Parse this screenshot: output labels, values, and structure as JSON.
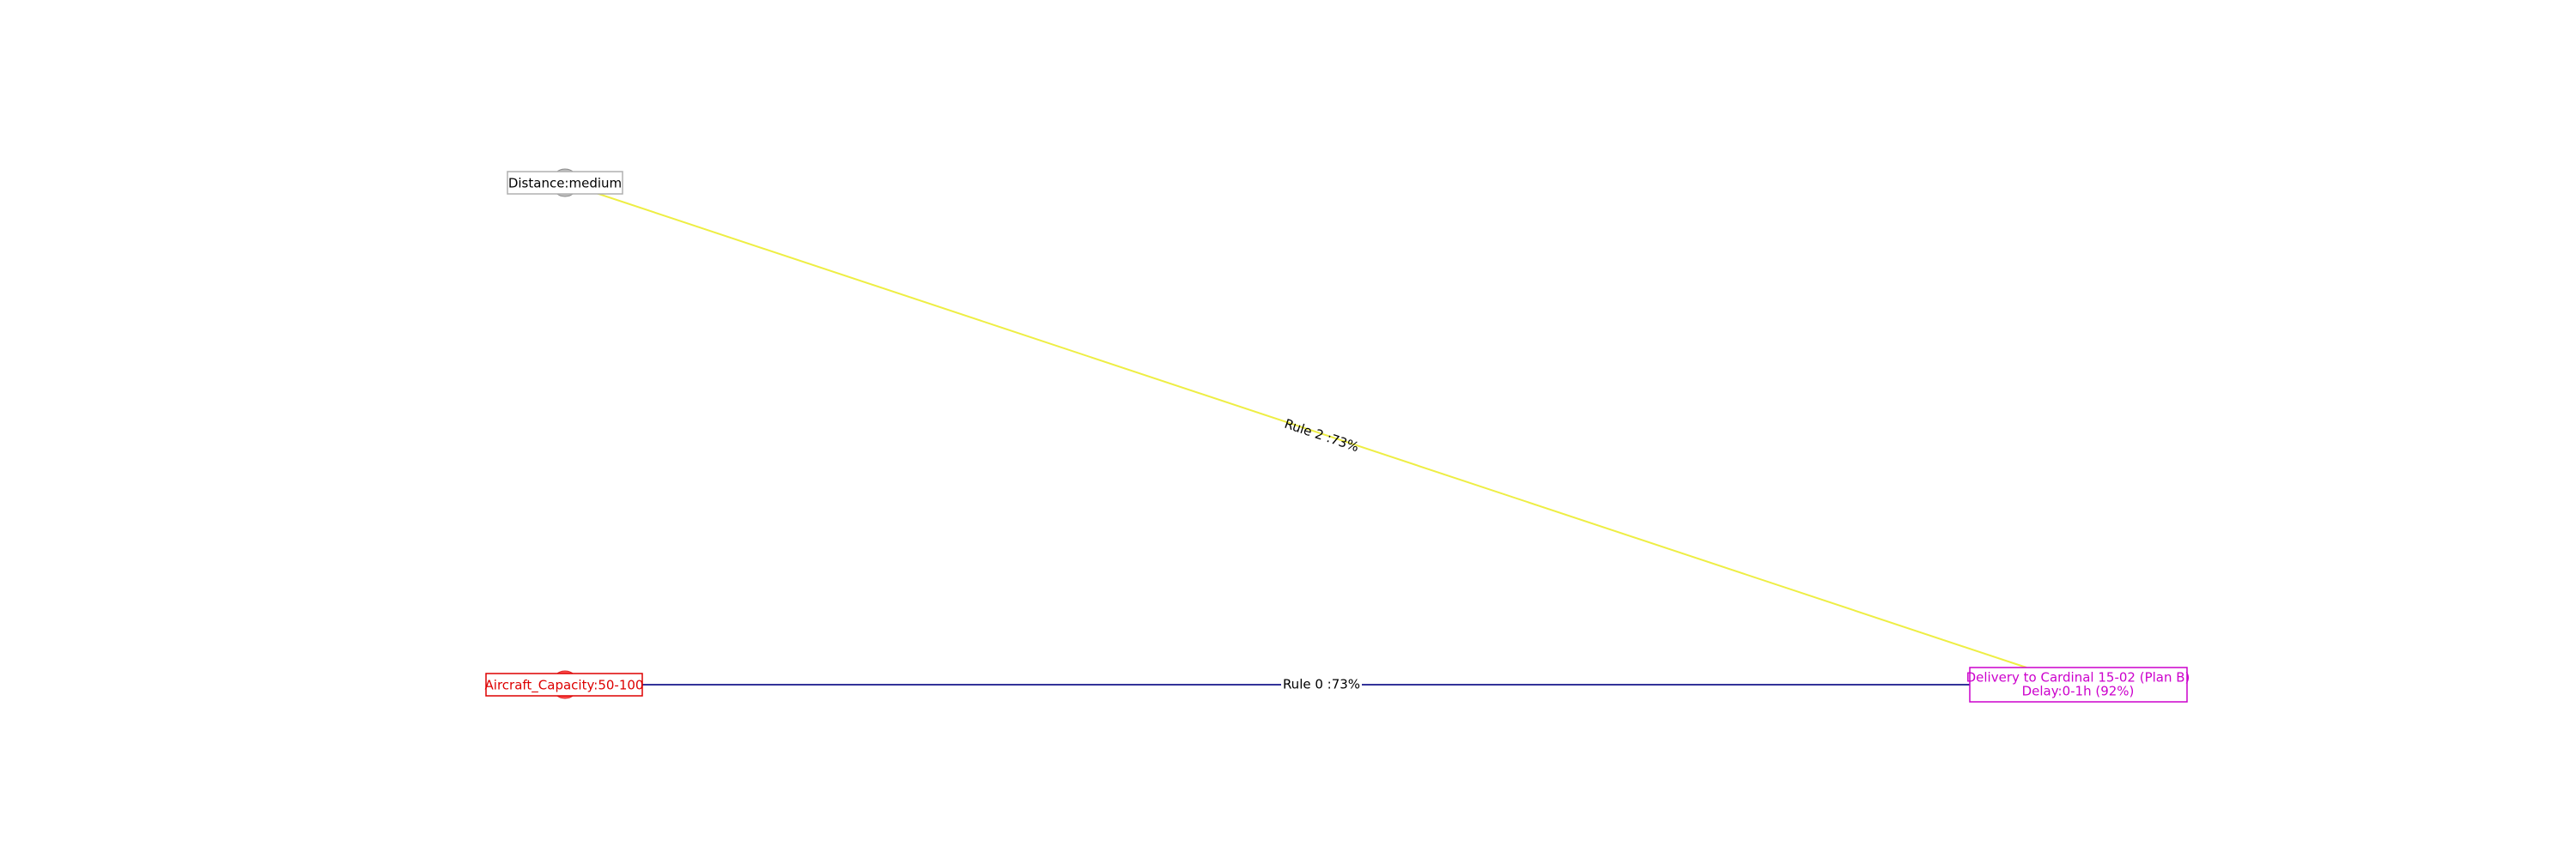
{
  "nodes": [
    {
      "id": "distance",
      "label": "Distance:medium",
      "color": "#aaaaaa",
      "text_color": "#000000",
      "box_color": "#b0b0b0"
    },
    {
      "id": "capacity",
      "label": "Aircraft_Capacity:50-100",
      "color": "#ff3333",
      "text_color": "#dd0000",
      "box_color": "#dd0000"
    },
    {
      "id": "target",
      "label_lines": [
        "Delivery to Cardinal 15-02 (Plan B)",
        "Delay:0-1h (92%)"
      ],
      "text_color": "#cc00cc",
      "box_color": "#cc00cc"
    }
  ],
  "edges": [
    {
      "id": "rule2",
      "from": "distance",
      "to": "target",
      "label": "Rule 2 :73%",
      "color": "#eeee44"
    },
    {
      "id": "rule0",
      "from": "capacity",
      "to": "target",
      "label": "Rule 0 :73%",
      "color": "#333399"
    }
  ]
}
